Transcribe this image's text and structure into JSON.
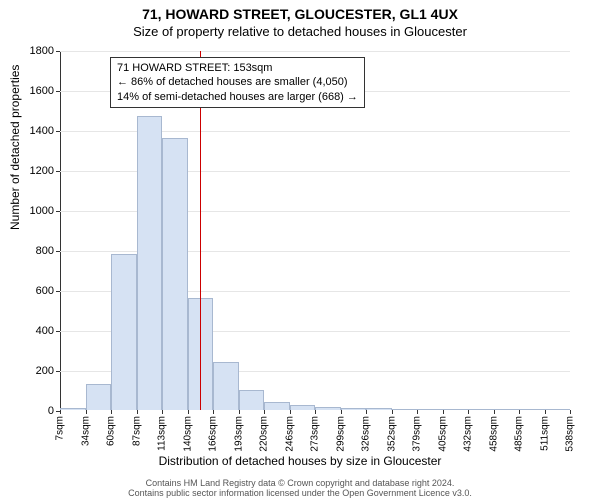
{
  "title_line1": "71, HOWARD STREET, GLOUCESTER, GL1 4UX",
  "title_line2": "Size of property relative to detached houses in Gloucester",
  "ylabel": "Number of detached properties",
  "xlabel": "Distribution of detached houses by size in Gloucester",
  "copyright_line1": "Contains HM Land Registry data © Crown copyright and database right 2024.",
  "copyright_line2": "Contains public sector information licensed under the Open Government Licence v3.0.",
  "annotation": {
    "line1": "71 HOWARD STREET: 153sqm",
    "line2": "← 86% of detached houses are smaller (4,050)",
    "line3": "14% of semi-detached houses are larger (668) →"
  },
  "marker_value": 153,
  "marker_color": "#cc0000",
  "chart": {
    "type": "histogram",
    "bar_fill": "#d6e2f3",
    "bar_stroke": "#a8b8d0",
    "grid_color": "#e6e6e6",
    "background_color": "#ffffff",
    "ylim": [
      0,
      1800
    ],
    "ytick_step": 200,
    "x_bin_width": 26.5,
    "x_start": 7,
    "x_end": 538,
    "x_labels": [
      "7sqm",
      "34sqm",
      "60sqm",
      "87sqm",
      "113sqm",
      "140sqm",
      "166sqm",
      "193sqm",
      "220sqm",
      "246sqm",
      "273sqm",
      "299sqm",
      "326sqm",
      "352sqm",
      "379sqm",
      "405sqm",
      "432sqm",
      "458sqm",
      "485sqm",
      "511sqm",
      "538sqm"
    ],
    "values": [
      10,
      130,
      780,
      1470,
      1360,
      560,
      240,
      100,
      40,
      25,
      15,
      10,
      8,
      0,
      0,
      0,
      0,
      0,
      0,
      0
    ]
  }
}
